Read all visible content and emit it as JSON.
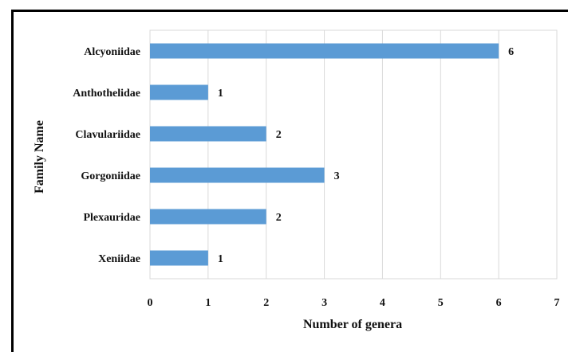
{
  "chart_data": {
    "type": "bar",
    "orientation": "horizontal",
    "categories": [
      "Alcyoniidae",
      "Anthothelidae",
      "Clavulariidae",
      "Gorgoniidae",
      "Plexauridae",
      "Xeniidae"
    ],
    "values": [
      6,
      1,
      2,
      3,
      2,
      1
    ],
    "data_labels": [
      "6",
      "1",
      "2",
      "3",
      "2",
      "1"
    ],
    "xlabel": "Number of genera",
    "ylabel": "Family Name",
    "xlim": [
      0,
      7
    ],
    "x_ticks": [
      "0",
      "1",
      "2",
      "3",
      "4",
      "5",
      "6",
      "7"
    ],
    "grid": "vertical",
    "legend": "none",
    "bar_color": "#5b9bd5",
    "grid_color": "#d9d9d9"
  }
}
